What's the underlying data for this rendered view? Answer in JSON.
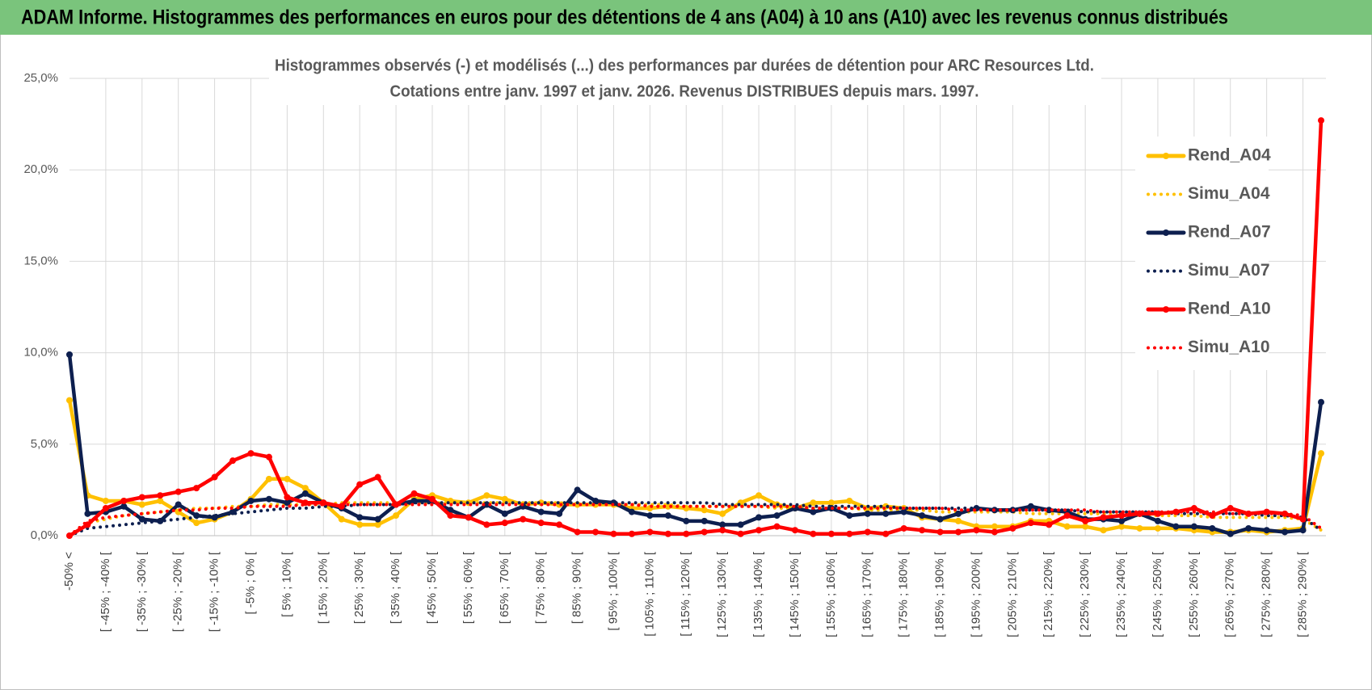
{
  "chart_data": {
    "type": "line",
    "title": "ADAM Informe. Histogrammes des performances en euros pour des détentions de 4 ans (A04) à 10 ans (A10) avec les revenus connus distribués",
    "subtitle": [
      "Histogrammes observés (-) et modélisés (...) des performances par durées de détention pour ARC Resources Ltd.",
      "Cotations entre janv. 1997 et janv. 2026. Revenus DISTRIBUES depuis mars. 1997."
    ],
    "categories": [
      "-50% <",
      null,
      "[ -45% ; -40% [",
      null,
      "[ -35% ; -30% [",
      null,
      "[ -25% ; -20% [",
      null,
      "[ -15% ; -10% [",
      null,
      "[ -5% ; 0% [",
      null,
      "[ 5% ; 10% [",
      null,
      "[ 15% ; 20% [",
      null,
      "[ 25% ; 30% [",
      null,
      "[ 35% ; 40% [",
      null,
      "[ 45% ; 50% [",
      null,
      "[ 55% ; 60% [",
      null,
      "[ 65% ; 70% [",
      null,
      "[ 75% ; 80% [",
      null,
      "[ 85% ; 90% [",
      null,
      "[ 95% ; 100% [",
      null,
      "[ 105% ; 110% [",
      null,
      "[ 115% ; 120% [",
      null,
      "[ 125% ; 130% [",
      null,
      "[ 135% ; 140% [",
      null,
      "[ 145% ; 150% [",
      null,
      "[ 155% ; 160% [",
      null,
      "[ 165% ; 170% [",
      null,
      "[ 175% ; 180% [",
      null,
      "[ 185% ; 190% [",
      null,
      "[ 195% ; 200% [",
      null,
      "[ 205% ; 210% [",
      null,
      "[ 215% ; 220% [",
      null,
      "[ 225% ; 230% [",
      null,
      "[ 235% ; 240% [",
      null,
      "[ 245% ; 250% [",
      null,
      "[ 255% ; 260% [",
      null,
      "[ 265% ; 270% [",
      null,
      "[ 275% ; 280% [",
      null,
      "[ 285% ; 290% [",
      null
    ],
    "ylim": [
      0,
      25
    ],
    "yticks": [
      {
        "value": 0,
        "label": "0,0%"
      },
      {
        "value": 5,
        "label": "5,0%"
      },
      {
        "value": 10,
        "label": "10,0%"
      },
      {
        "value": 15,
        "label": "15,0%"
      },
      {
        "value": 20,
        "label": "20,0%"
      },
      {
        "value": 25,
        "label": "25,0%"
      }
    ],
    "grid": true,
    "legend": "right",
    "series": [
      {
        "name": "Rend_A04",
        "color": "#ffc000",
        "line_style": "solid",
        "markers": true,
        "values": [
          7.4,
          2.2,
          1.9,
          1.9,
          1.7,
          1.9,
          1.3,
          0.7,
          0.9,
          1.3,
          2.0,
          3.1,
          3.1,
          2.6,
          1.8,
          0.9,
          0.6,
          0.6,
          1.1,
          2.0,
          2.2,
          1.9,
          1.8,
          2.2,
          2.0,
          1.7,
          1.8,
          1.7,
          1.7,
          1.7,
          1.7,
          1.5,
          1.5,
          1.6,
          1.5,
          1.4,
          1.2,
          1.8,
          2.2,
          1.7,
          1.5,
          1.8,
          1.8,
          1.9,
          1.5,
          1.6,
          1.5,
          1.0,
          0.9,
          0.8,
          0.5,
          0.5,
          0.5,
          0.8,
          0.8,
          0.5,
          0.5,
          0.3,
          0.5,
          0.4,
          0.4,
          0.4,
          0.3,
          0.2,
          0.2,
          0.3,
          0.2,
          0.3,
          0.4,
          4.5
        ]
      },
      {
        "name": "Simu_A04",
        "color": "#ffc000",
        "line_style": "dotted",
        "markers": false,
        "values": [
          0.0,
          0.7,
          0.9,
          1.1,
          1.2,
          1.3,
          1.4,
          1.5,
          1.5,
          1.6,
          1.6,
          1.7,
          1.7,
          1.7,
          1.7,
          1.8,
          1.8,
          1.8,
          1.8,
          1.8,
          1.8,
          1.8,
          1.8,
          1.8,
          1.8,
          1.8,
          1.8,
          1.8,
          1.7,
          1.7,
          1.7,
          1.7,
          1.7,
          1.7,
          1.6,
          1.6,
          1.6,
          1.6,
          1.6,
          1.5,
          1.5,
          1.5,
          1.5,
          1.5,
          1.4,
          1.4,
          1.4,
          1.4,
          1.3,
          1.3,
          1.3,
          1.3,
          1.3,
          1.2,
          1.2,
          1.2,
          1.2,
          1.2,
          1.1,
          1.1,
          1.1,
          1.1,
          1.1,
          1.0,
          1.0,
          1.0,
          1.0,
          1.0,
          0.9,
          0.3
        ]
      },
      {
        "name": "Rend_A07",
        "color": "#0d1f4f",
        "line_style": "solid",
        "markers": true,
        "values": [
          9.9,
          1.2,
          1.3,
          1.6,
          0.9,
          0.8,
          1.7,
          1.1,
          1.0,
          1.3,
          1.9,
          2.0,
          1.8,
          2.3,
          1.8,
          1.5,
          1.0,
          0.9,
          1.7,
          1.9,
          1.9,
          1.4,
          1.0,
          1.7,
          1.2,
          1.6,
          1.3,
          1.2,
          2.5,
          1.9,
          1.8,
          1.3,
          1.1,
          1.1,
          0.8,
          0.8,
          0.6,
          0.6,
          1.0,
          1.1,
          1.5,
          1.3,
          1.5,
          1.1,
          1.2,
          1.2,
          1.3,
          1.1,
          0.9,
          1.2,
          1.5,
          1.4,
          1.4,
          1.6,
          1.4,
          1.3,
          0.9,
          0.9,
          0.8,
          1.2,
          0.8,
          0.5,
          0.5,
          0.4,
          0.1,
          0.4,
          0.3,
          0.2,
          0.3,
          7.3
        ]
      },
      {
        "name": "Simu_A07",
        "color": "#0d1f4f",
        "line_style": "dotted",
        "markers": false,
        "values": [
          0.0,
          0.4,
          0.5,
          0.6,
          0.7,
          0.8,
          0.9,
          1.0,
          1.1,
          1.2,
          1.3,
          1.4,
          1.5,
          1.5,
          1.6,
          1.6,
          1.7,
          1.7,
          1.7,
          1.8,
          1.8,
          1.8,
          1.8,
          1.8,
          1.8,
          1.8,
          1.8,
          1.8,
          1.8,
          1.8,
          1.8,
          1.8,
          1.8,
          1.8,
          1.8,
          1.8,
          1.7,
          1.7,
          1.7,
          1.7,
          1.7,
          1.6,
          1.6,
          1.6,
          1.6,
          1.6,
          1.5,
          1.5,
          1.5,
          1.5,
          1.5,
          1.4,
          1.4,
          1.4,
          1.4,
          1.4,
          1.3,
          1.3,
          1.3,
          1.3,
          1.3,
          1.2,
          1.2,
          1.2,
          1.2,
          1.2,
          1.1,
          1.1,
          1.0,
          0.3
        ]
      },
      {
        "name": "Rend_A10",
        "color": "#ff0000",
        "line_style": "solid",
        "markers": true,
        "values": [
          0.0,
          0.6,
          1.5,
          1.9,
          2.1,
          2.2,
          2.4,
          2.6,
          3.2,
          4.1,
          4.5,
          4.3,
          2.1,
          1.8,
          1.8,
          1.6,
          2.8,
          3.2,
          1.7,
          2.3,
          2.0,
          1.1,
          1.0,
          0.6,
          0.7,
          0.9,
          0.7,
          0.6,
          0.2,
          0.2,
          0.1,
          0.1,
          0.2,
          0.1,
          0.1,
          0.2,
          0.3,
          0.1,
          0.3,
          0.5,
          0.3,
          0.1,
          0.1,
          0.1,
          0.2,
          0.1,
          0.4,
          0.3,
          0.2,
          0.2,
          0.3,
          0.2,
          0.4,
          0.7,
          0.6,
          1.1,
          0.8,
          1.0,
          1.1,
          1.2,
          1.2,
          1.3,
          1.5,
          1.1,
          1.5,
          1.2,
          1.3,
          1.2,
          0.9,
          22.7
        ]
      },
      {
        "name": "Simu_A10",
        "color": "#ff0000",
        "line_style": "dotted",
        "markers": false,
        "values": [
          0.0,
          0.8,
          1.0,
          1.1,
          1.2,
          1.3,
          1.4,
          1.4,
          1.5,
          1.5,
          1.6,
          1.6,
          1.6,
          1.7,
          1.7,
          1.7,
          1.7,
          1.7,
          1.7,
          1.7,
          1.7,
          1.7,
          1.7,
          1.7,
          1.7,
          1.7,
          1.7,
          1.7,
          1.7,
          1.7,
          1.7,
          1.7,
          1.6,
          1.6,
          1.6,
          1.6,
          1.6,
          1.6,
          1.6,
          1.6,
          1.6,
          1.5,
          1.5,
          1.5,
          1.5,
          1.5,
          1.5,
          1.5,
          1.5,
          1.4,
          1.4,
          1.4,
          1.4,
          1.4,
          1.4,
          1.4,
          1.4,
          1.3,
          1.3,
          1.3,
          1.3,
          1.3,
          1.3,
          1.3,
          1.2,
          1.2,
          1.2,
          1.2,
          1.1,
          0.4
        ]
      }
    ]
  }
}
